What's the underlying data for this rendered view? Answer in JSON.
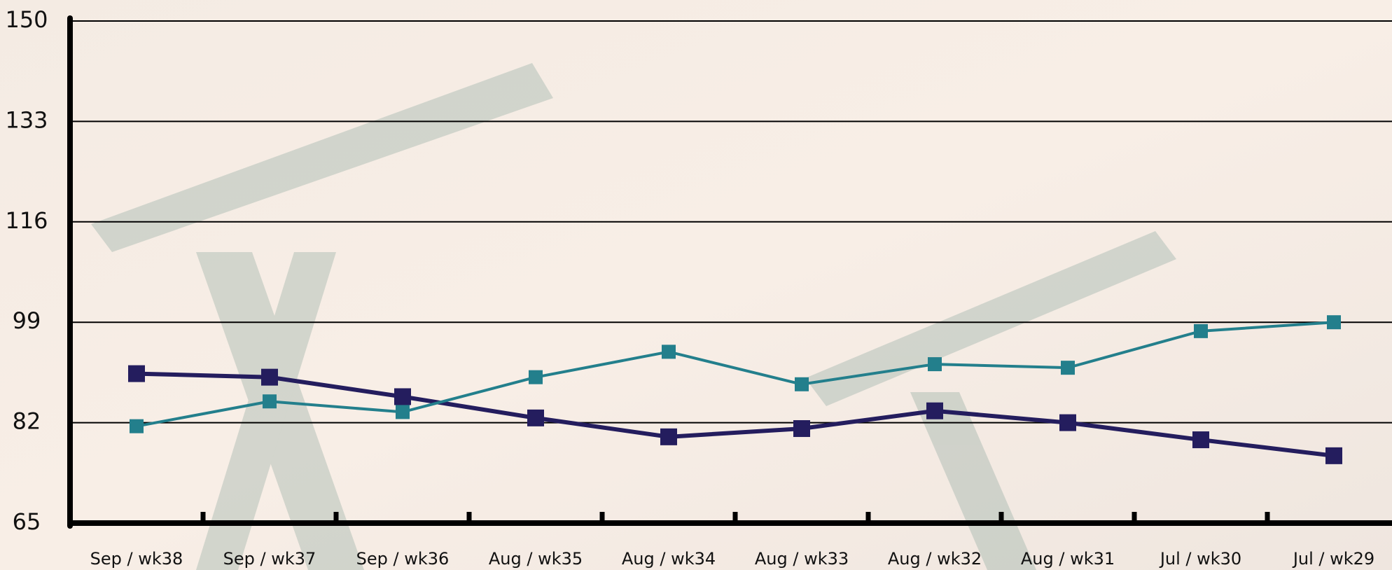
{
  "chart_data": {
    "type": "line",
    "categories": [
      "Sep / wk38",
      "Sep / wk37",
      "Sep / wk36",
      "Aug / wk35",
      "Aug / wk34",
      "Aug / wk33",
      "Aug / wk32",
      "Aug / wk31",
      "Jul / wk30",
      "Jul / wk29"
    ],
    "series": [
      {
        "color": "#241d5e",
        "values": [
          90.3,
          89.7,
          86.4,
          82.8,
          79.6,
          81,
          84,
          82,
          79.1,
          76.4
        ]
      },
      {
        "color": "#237f8c",
        "values": [
          81.4,
          85.6,
          83.8,
          89.7,
          94,
          88.5,
          91.9,
          91.3,
          97.5,
          99
        ]
      }
    ],
    "ylim": [
      65,
      150
    ],
    "yticks": [
      65,
      82,
      99,
      116,
      133,
      150
    ],
    "grid": true
  }
}
